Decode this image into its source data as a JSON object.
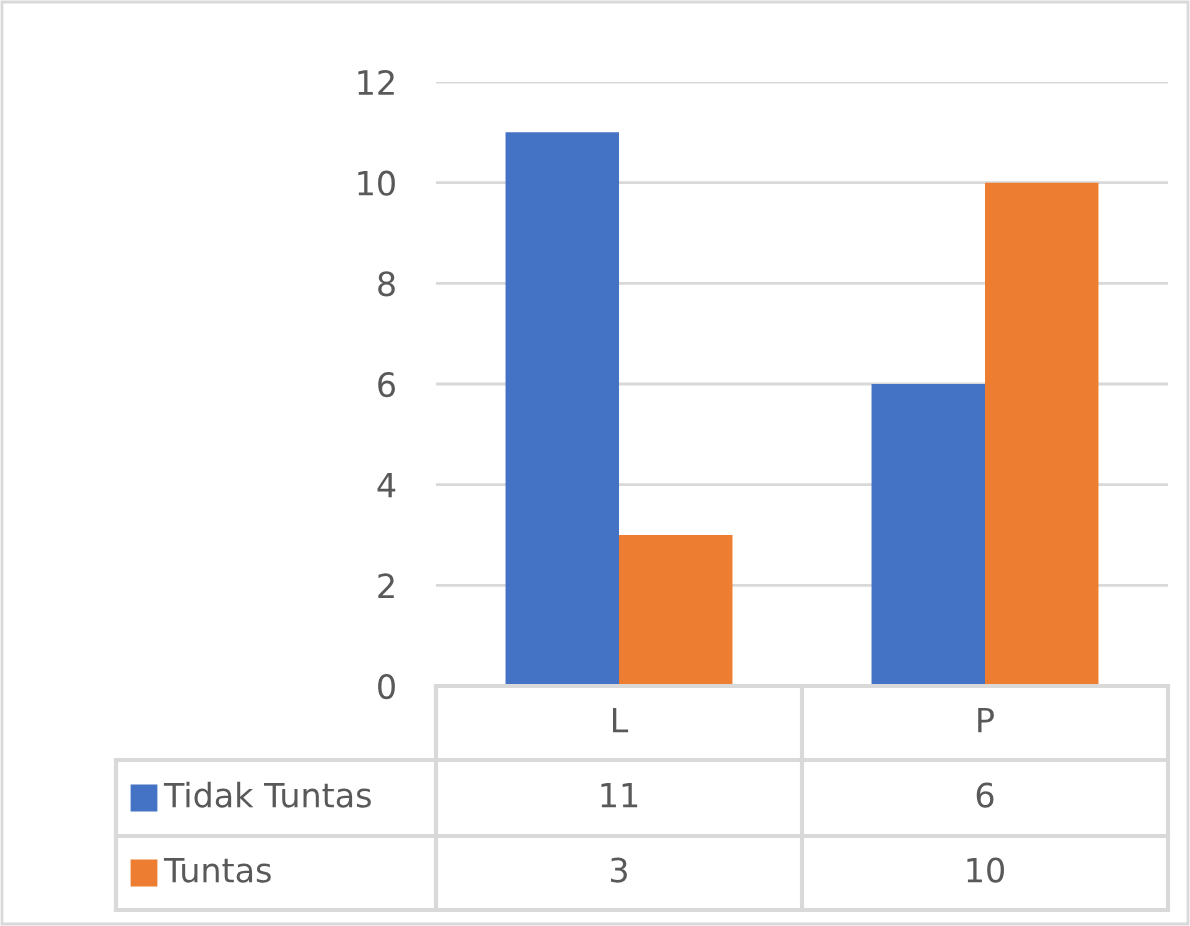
{
  "chart_data": {
    "type": "bar",
    "categories": [
      "L",
      "P"
    ],
    "series": [
      {
        "name": "Tidak Tuntas",
        "color": "#4472c4",
        "values": [
          11,
          6
        ]
      },
      {
        "name": "Tuntas",
        "color": "#ed7d31",
        "values": [
          3,
          10
        ]
      }
    ],
    "ylim": [
      0,
      12
    ],
    "yticks": [
      0,
      2,
      4,
      6,
      8,
      10,
      12
    ],
    "grid": "y",
    "data_labels": true,
    "legend": "bottom left"
  }
}
